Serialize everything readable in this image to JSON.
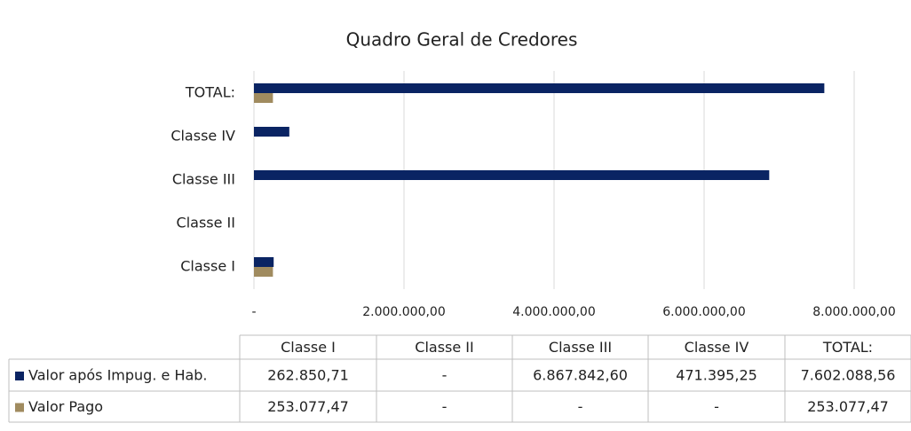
{
  "chart_data": {
    "type": "bar",
    "orientation": "horizontal",
    "title": "Quadro Geral de Credores",
    "categories": [
      "Classe I",
      "Classe II",
      "Classe III",
      "Classe IV",
      "TOTAL:"
    ],
    "series": [
      {
        "name": "Valor após Impug. e Hab.",
        "color": "#0a2463",
        "values": [
          262850.71,
          null,
          6867842.6,
          471395.25,
          7602088.56
        ],
        "value_labels": [
          "262.850,71",
          "-",
          "6.867.842,60",
          "471.395,25",
          "7.602.088,56"
        ]
      },
      {
        "name": "Valor Pago",
        "color": "#a08b5f",
        "values": [
          253077.47,
          null,
          null,
          null,
          253077.47
        ],
        "value_labels": [
          "253.077,47",
          "-",
          "-",
          "-",
          "253.077,47"
        ]
      }
    ],
    "xlim": [
      0,
      8000000
    ],
    "xticks": [
      {
        "value": 0,
        "label": "-"
      },
      {
        "value": 2000000,
        "label": "2.000.000,00"
      },
      {
        "value": 4000000,
        "label": "4.000.000,00"
      },
      {
        "value": 6000000,
        "label": "6.000.000,00"
      },
      {
        "value": 8000000,
        "label": "8.000.000,00"
      }
    ],
    "grid": true,
    "data_table": true
  }
}
